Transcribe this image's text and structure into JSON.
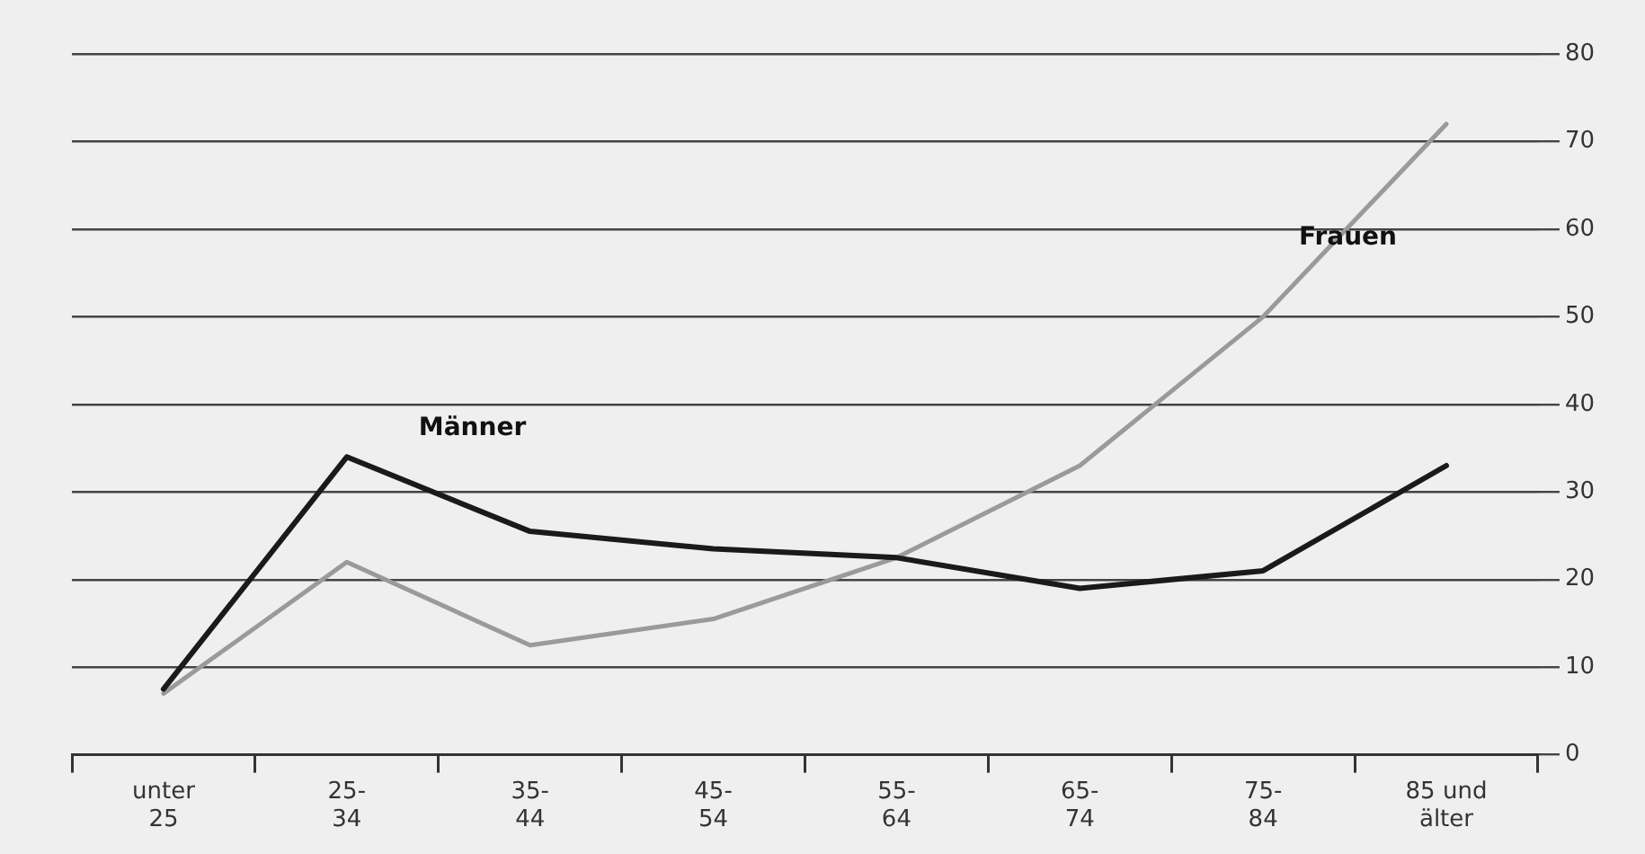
{
  "chart_data": {
    "type": "line",
    "categories": [
      "unter\n25",
      "25-\n34",
      "35-\n44",
      "45-\n54",
      "55-\n64",
      "65-\n74",
      "75-\n84",
      "85 und\nälter"
    ],
    "series": [
      {
        "name": "Männer",
        "color": "#1a1a1a",
        "values": [
          7.5,
          34,
          25.5,
          23.5,
          22.5,
          19,
          21,
          33
        ]
      },
      {
        "name": "Frauen",
        "color": "#9a9a9a",
        "values": [
          7,
          22,
          12.5,
          15.5,
          22.5,
          33,
          50,
          72
        ]
      }
    ],
    "ylim": [
      0,
      80
    ],
    "yticks": [
      0,
      10,
      20,
      30,
      40,
      50,
      60,
      70,
      80
    ],
    "grid": "y",
    "legend": false,
    "marker": "none",
    "line_style": "solid"
  }
}
